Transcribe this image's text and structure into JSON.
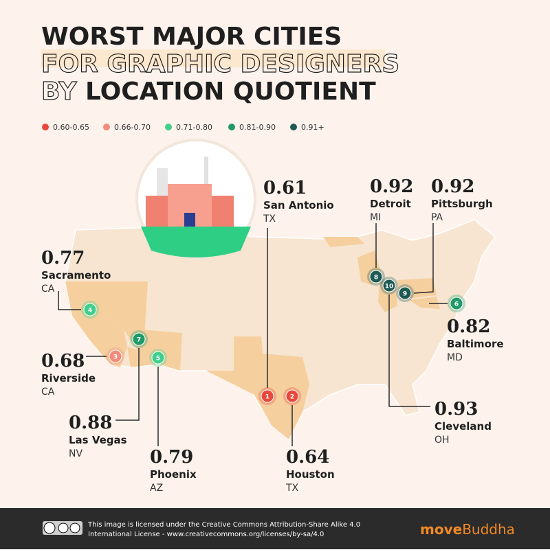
{
  "title": {
    "line1": "WORST MAJOR CITIES",
    "line2": "FOR GRAPHIC DESIGNERS",
    "line3_outline": "BY",
    "line3_bold": "LOCATION QUOTIENT"
  },
  "legend": [
    {
      "label": "0.60-0.65",
      "color": "#e8483b"
    },
    {
      "label": "0.66-0.70",
      "color": "#f28b7c"
    },
    {
      "label": "0.71-0.80",
      "color": "#3fcf8c"
    },
    {
      "label": "0.81-0.90",
      "color": "#1f9a68"
    },
    {
      "label": "0.91+",
      "color": "#1e5a53"
    }
  ],
  "cities": [
    {
      "rank": 1,
      "value": 0.61,
      "name": "San Antonio",
      "state": "TX",
      "color": "#e8483b"
    },
    {
      "rank": 2,
      "value": 0.64,
      "name": "Houston",
      "state": "TX",
      "color": "#e8483b"
    },
    {
      "rank": 3,
      "value": 0.68,
      "name": "Riverside",
      "state": "CA",
      "color": "#f28b7c"
    },
    {
      "rank": 4,
      "value": 0.77,
      "name": "Sacramento",
      "state": "CA",
      "color": "#3fcf8c"
    },
    {
      "rank": 5,
      "value": 0.79,
      "name": "Phoenix",
      "state": "AZ",
      "color": "#3fcf8c"
    },
    {
      "rank": 6,
      "value": 0.82,
      "name": "Baltimore",
      "state": "MD",
      "color": "#1f9a68"
    },
    {
      "rank": 7,
      "value": 0.88,
      "name": "Las Vegas",
      "state": "NV",
      "color": "#1f9a68"
    },
    {
      "rank": 8,
      "value": 0.92,
      "name": "Detroit",
      "state": "MI",
      "color": "#1e5a53"
    },
    {
      "rank": 9,
      "value": 0.92,
      "name": "Pittsburgh",
      "state": "PA",
      "color": "#1e5a53"
    },
    {
      "rank": 10,
      "value": 0.93,
      "name": "Cleveland",
      "state": "OH",
      "color": "#1e5a53"
    }
  ],
  "footer": {
    "license_line1": "This image is licensed under the Creative Commons Attribution-Share Alike 4.0",
    "license_line2": "International License - www.creativecommons.org/licenses/by-sa/4.0",
    "brand_bold": "move",
    "brand_regular": "Buddha"
  }
}
